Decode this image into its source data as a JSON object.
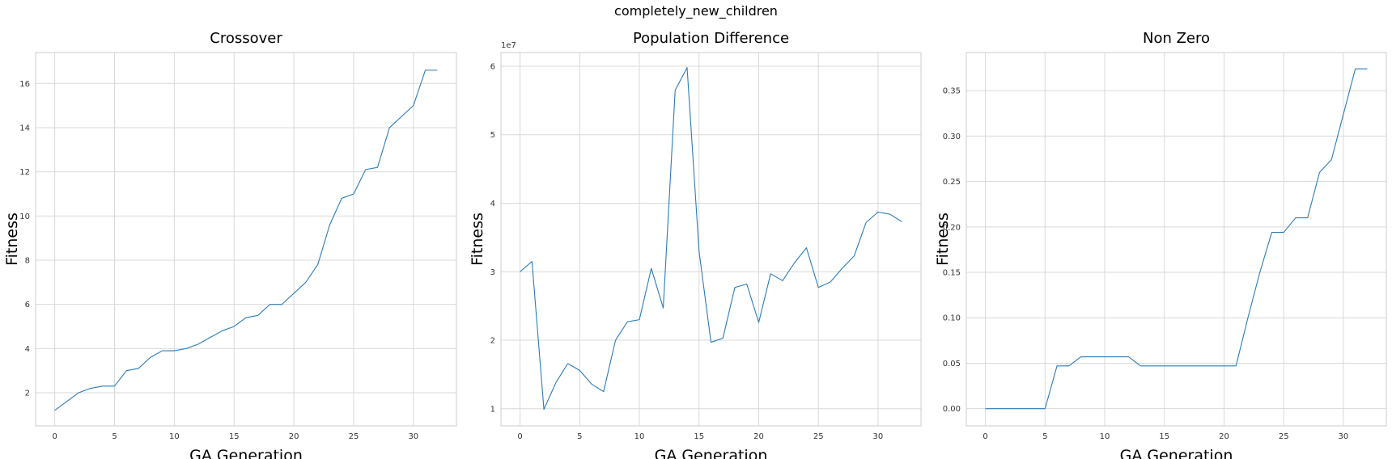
{
  "figure_title": "completely_new_children",
  "line_color": "#2b7bba",
  "chart_data": [
    {
      "type": "line",
      "title": "Crossover",
      "xlabel": "GA Generation",
      "ylabel": "Fitness",
      "xlim": [
        -1.6,
        33.6
      ],
      "ylim": [
        0.5,
        17.4
      ],
      "xticks": [
        0,
        5,
        10,
        15,
        20,
        25,
        30
      ],
      "xtick_labels": [
        "0",
        "5",
        "10",
        "15",
        "20",
        "25",
        "30"
      ],
      "yticks": [
        2,
        4,
        6,
        8,
        10,
        12,
        14,
        16
      ],
      "ytick_labels": [
        "2",
        "4",
        "6",
        "8",
        "10",
        "12",
        "14",
        "16"
      ],
      "y_offset_text": "",
      "grid": true,
      "x": [
        0,
        1,
        2,
        3,
        4,
        5,
        6,
        7,
        8,
        9,
        10,
        11,
        12,
        13,
        14,
        15,
        16,
        17,
        18,
        19,
        20,
        21,
        22,
        23,
        24,
        25,
        26,
        27,
        28,
        29,
        30,
        31,
        32
      ],
      "y": [
        1.2,
        1.6,
        2.0,
        2.2,
        2.3,
        2.3,
        3.0,
        3.1,
        3.6,
        3.9,
        3.9,
        4.0,
        4.2,
        4.5,
        4.8,
        5.0,
        5.4,
        5.5,
        6.0,
        6.0,
        6.5,
        7.0,
        7.8,
        9.6,
        10.8,
        11.0,
        12.1,
        12.2,
        14.0,
        14.5,
        15.0,
        16.6,
        16.6
      ]
    },
    {
      "type": "line",
      "title": "Population Difference",
      "xlabel": "GA Generation",
      "ylabel": "Fitness",
      "xlim": [
        -1.6,
        33.6
      ],
      "ylim": [
        0.75,
        6.2
      ],
      "xticks": [
        0,
        5,
        10,
        15,
        20,
        25,
        30
      ],
      "xtick_labels": [
        "0",
        "5",
        "10",
        "15",
        "20",
        "25",
        "30"
      ],
      "yticks": [
        1,
        2,
        3,
        4,
        5,
        6
      ],
      "ytick_labels": [
        "1",
        "2",
        "3",
        "4",
        "5",
        "6"
      ],
      "y_offset_text": "1e7",
      "grid": true,
      "x": [
        0,
        1,
        2,
        3,
        4,
        5,
        6,
        7,
        8,
        9,
        10,
        11,
        12,
        13,
        14,
        15,
        16,
        17,
        18,
        19,
        20,
        21,
        22,
        23,
        24,
        25,
        26,
        27,
        28,
        29,
        30,
        31,
        32
      ],
      "y": [
        3.0,
        3.15,
        0.99,
        1.38,
        1.66,
        1.56,
        1.36,
        1.25,
        2.0,
        2.27,
        2.3,
        3.05,
        2.47,
        5.65,
        5.98,
        3.3,
        1.97,
        2.03,
        2.77,
        2.82,
        2.26,
        2.97,
        2.87,
        3.13,
        3.35,
        2.77,
        2.85,
        3.05,
        3.23,
        3.72,
        3.87,
        3.84,
        3.73
      ]
    },
    {
      "type": "line",
      "title": "Non Zero",
      "xlabel": "GA Generation",
      "ylabel": "Fitness",
      "xlim": [
        -1.6,
        33.6
      ],
      "ylim": [
        -0.019,
        0.392
      ],
      "xticks": [
        0,
        5,
        10,
        15,
        20,
        25,
        30
      ],
      "xtick_labels": [
        "0",
        "5",
        "10",
        "15",
        "20",
        "25",
        "30"
      ],
      "yticks": [
        0.0,
        0.05,
        0.1,
        0.15,
        0.2,
        0.25,
        0.3,
        0.35
      ],
      "ytick_labels": [
        "0.00",
        "0.05",
        "0.10",
        "0.15",
        "0.20",
        "0.25",
        "0.30",
        "0.35"
      ],
      "y_offset_text": "",
      "grid": true,
      "x": [
        0,
        1,
        2,
        3,
        4,
        5,
        6,
        7,
        8,
        9,
        10,
        11,
        12,
        13,
        14,
        15,
        16,
        17,
        18,
        19,
        20,
        21,
        22,
        23,
        24,
        25,
        26,
        27,
        28,
        29,
        30,
        31,
        32
      ],
      "y": [
        0.0,
        0.0,
        0.0,
        0.0,
        0.0,
        0.0,
        0.047,
        0.047,
        0.057,
        0.057,
        0.057,
        0.057,
        0.057,
        0.047,
        0.047,
        0.047,
        0.047,
        0.047,
        0.047,
        0.047,
        0.047,
        0.047,
        0.1,
        0.15,
        0.194,
        0.194,
        0.21,
        0.21,
        0.26,
        0.274,
        0.324,
        0.374,
        0.374
      ]
    }
  ]
}
